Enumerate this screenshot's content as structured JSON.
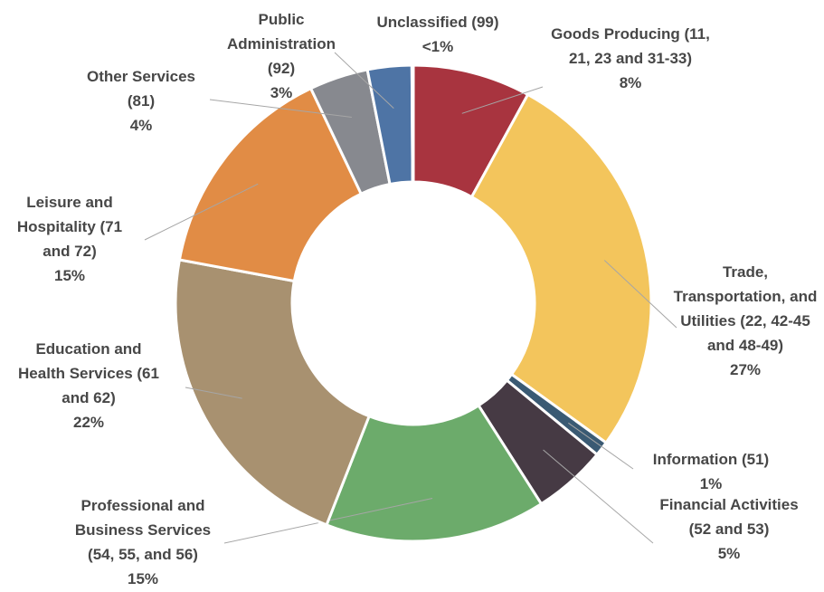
{
  "chart_data": {
    "type": "donut",
    "categories": [
      "Goods Producing (11, 21, 23 and 31-33)",
      "Trade, Transportation, and Utilities (22, 42-45 and 48-49)",
      "Information (51)",
      "Financial Activities (52 and 53)",
      "Professional and Business Services (54, 55, and 56)",
      "Education and Health Services (61 and 62)",
      "Leisure and Hospitality (71 and 72)",
      "Other Services (81)",
      "Public Administration (92)",
      "Unclassified (99)"
    ],
    "values": [
      8,
      27,
      1,
      5,
      15,
      22,
      15,
      4,
      3,
      0.1
    ],
    "value_labels": [
      "8%",
      "27%",
      "1%",
      "5%",
      "15%",
      "22%",
      "15%",
      "4%",
      "3%",
      "<1%"
    ],
    "colors": [
      "#a8343f",
      "#f3c55c",
      "#3a5a73",
      "#463a44",
      "#6cab6b",
      "#a89170",
      "#e18c45",
      "#87898f",
      "#4e74a5",
      "#9aa3b0"
    ]
  }
}
